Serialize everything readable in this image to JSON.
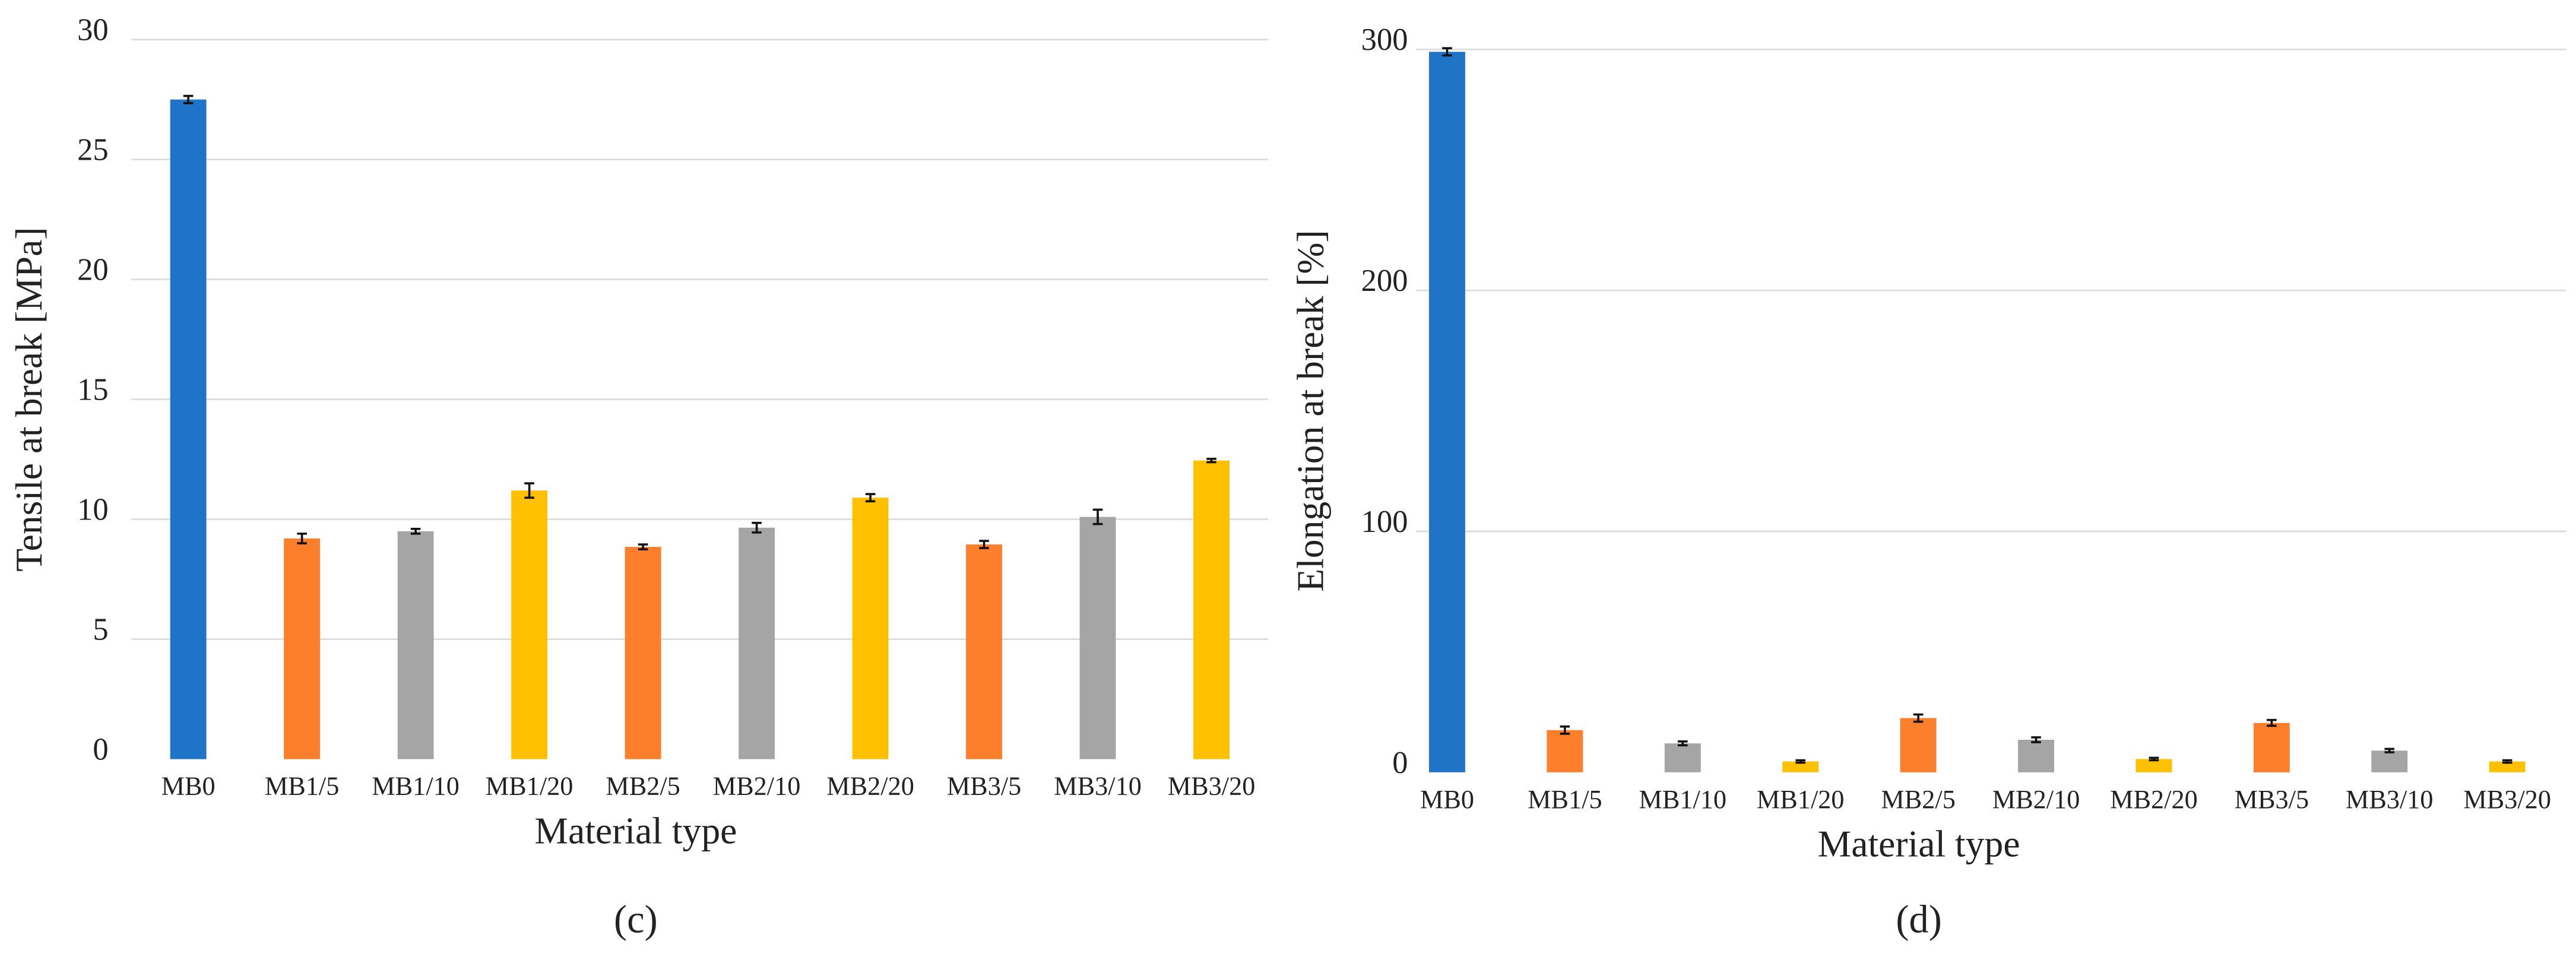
{
  "chart_data": [
    {
      "type": "bar",
      "label": "(c)",
      "y_label": "Tensile at break [MPa]",
      "x_label": "Material type",
      "categories": [
        "MB0",
        "MB1/5",
        "MB1/10",
        "MB1/20",
        "MB2/5",
        "MB2/10",
        "MB2/20",
        "MB3/5",
        "MB3/10",
        "MB3/20"
      ],
      "values": [
        27.5,
        9.2,
        9.5,
        11.2,
        8.85,
        9.65,
        10.9,
        8.95,
        10.1,
        12.45
      ],
      "errors": [
        0.15,
        0.2,
        0.1,
        0.3,
        0.1,
        0.2,
        0.15,
        0.15,
        0.3,
        0.07
      ],
      "colors": [
        "#1f74c8",
        "#fd7e2b",
        "#a5a5a5",
        "#ffc000",
        "#fd7e2b",
        "#a5a5a5",
        "#ffc000",
        "#fd7e2b",
        "#a5a5a5",
        "#ffc000"
      ],
      "ylim": [
        0,
        30
      ],
      "yticks": [
        0,
        5,
        10,
        15,
        20,
        25,
        30
      ],
      "grid": true
    },
    {
      "type": "bar",
      "label": "(d)",
      "y_label": "Elongation at break [%]",
      "x_label": "Material type",
      "categories": [
        "MB0",
        "MB1/5",
        "MB1/10",
        "MB1/20",
        "MB2/5",
        "MB2/10",
        "MB2/20",
        "MB3/5",
        "MB3/10",
        "MB3/20"
      ],
      "values": [
        299,
        17.5,
        12,
        4.5,
        22.5,
        13.5,
        5.5,
        20.5,
        9,
        4.5
      ],
      "errors": [
        1.5,
        1.5,
        0.8,
        0.5,
        1.5,
        1,
        0.5,
        1.2,
        0.7,
        0.5
      ],
      "colors": [
        "#1f74c8",
        "#fd7e2b",
        "#a5a5a5",
        "#ffc000",
        "#fd7e2b",
        "#a5a5a5",
        "#ffc000",
        "#fd7e2b",
        "#a5a5a5",
        "#ffc000"
      ],
      "ylim": [
        0,
        300
      ],
      "yticks": [
        0,
        100,
        200,
        300
      ],
      "grid": true
    }
  ]
}
